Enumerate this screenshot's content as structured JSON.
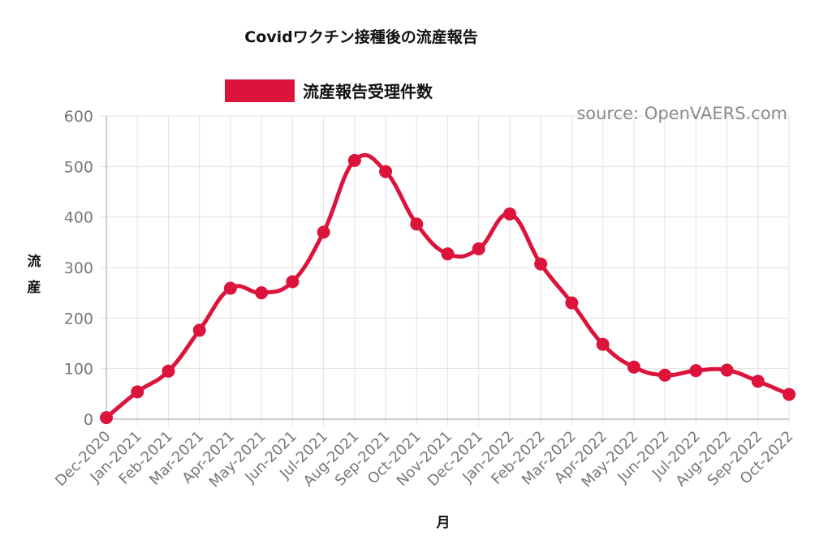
{
  "chart_data": {
    "type": "line",
    "title": "Covidワクチン接種後の流産報告",
    "source": "source: OpenVAERS.com",
    "xlabel": "月",
    "ylabel": [
      "流",
      "産"
    ],
    "ylim": [
      0,
      600
    ],
    "yticks": [
      "0",
      "100",
      "200",
      "300",
      "400",
      "500",
      "600"
    ],
    "grid": true,
    "legend_position": "top-center",
    "categories": [
      "Dec-2020",
      "Jan-2021",
      "Feb-2021",
      "Mar-2021",
      "Apr-2021",
      "May-2021",
      "Jun-2021",
      "Jul-2021",
      "Aug-2021",
      "Sep-2021",
      "Oct-2021",
      "Nov-2021",
      "Dec-2021",
      "Jan-2022",
      "Feb-2022",
      "Mar-2022",
      "Apr-2022",
      "May-2022",
      "Jun-2022",
      "Jul-2022",
      "Aug-2022",
      "Sep-2022",
      "Oct-2022"
    ],
    "series": [
      {
        "name": "流産報告受理件数",
        "color": "#dc143c",
        "values": [
          3,
          54,
          95,
          176,
          259,
          250,
          272,
          370,
          512,
          490,
          386,
          327,
          337,
          406,
          307,
          230,
          148,
          103,
          87,
          96,
          97,
          75,
          49
        ]
      }
    ]
  }
}
